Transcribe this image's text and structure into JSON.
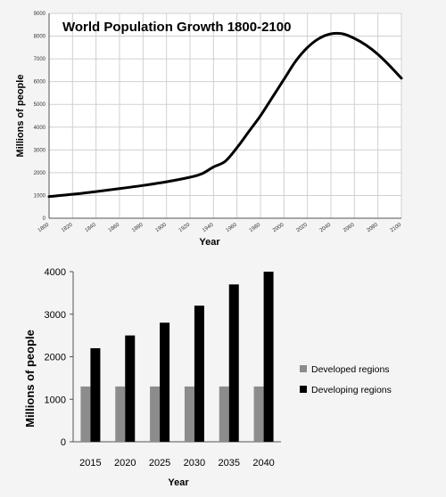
{
  "chart_data": [
    {
      "type": "line",
      "title": "World Population Growth 1800-2100",
      "xlabel": "Year",
      "ylabel": "Millions of people",
      "xlim": [
        1800,
        2100
      ],
      "ylim": [
        0,
        9000
      ],
      "x_ticks": [
        1800,
        1820,
        1840,
        1860,
        1880,
        1900,
        1920,
        1940,
        1960,
        1980,
        2000,
        2020,
        2040,
        2060,
        2080,
        2100
      ],
      "y_ticks": [
        0,
        1000,
        2000,
        3000,
        4000,
        5000,
        6000,
        7000,
        8000,
        9000
      ],
      "grid": true,
      "series": [
        {
          "x": [
            1800,
            1820,
            1840,
            1860,
            1880,
            1900,
            1920,
            1930,
            1940,
            1950,
            1960,
            1970,
            1980,
            1990,
            2000,
            2010,
            2020,
            2030,
            2040,
            2050,
            2060,
            2070,
            2080,
            2090,
            2100
          ],
          "values": [
            950,
            1050,
            1170,
            1300,
            1440,
            1600,
            1800,
            1950,
            2250,
            2500,
            3100,
            3800,
            4500,
            5300,
            6100,
            6900,
            7500,
            7900,
            8100,
            8100,
            7900,
            7600,
            7200,
            6700,
            6150
          ],
          "color": "#000000"
        }
      ]
    },
    {
      "type": "bar",
      "xlabel": "Year",
      "ylabel": "Millions of people",
      "categories": [
        "2015",
        "2020",
        "2025",
        "2030",
        "2035",
        "2040"
      ],
      "ylim": [
        0,
        4000
      ],
      "y_ticks": [
        0,
        1000,
        2000,
        3000,
        4000
      ],
      "grid": false,
      "legend": "right",
      "series": [
        {
          "name": "Developed regions",
          "values": [
            1300,
            1300,
            1300,
            1300,
            1300,
            1300
          ],
          "color": "#8c8c8c"
        },
        {
          "name": "Developing regions",
          "values": [
            2200,
            2500,
            2800,
            3200,
            3700,
            4000
          ],
          "color": "#000000"
        }
      ]
    }
  ]
}
